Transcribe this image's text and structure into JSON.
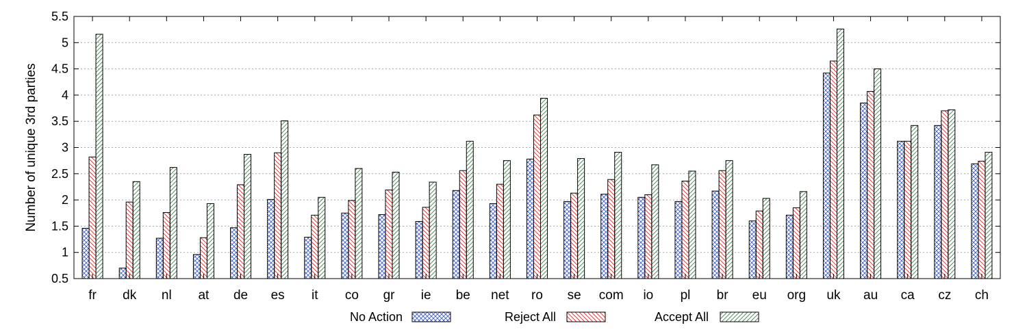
{
  "chart_data": {
    "type": "bar",
    "title": "",
    "xlabel": "",
    "ylabel": "Number of unique 3rd parties",
    "ylim": [
      0.5,
      5.5
    ],
    "yticks": [
      "0.5",
      "1",
      "1.5",
      "2",
      "2.5",
      "3",
      "3.5",
      "4",
      "4.5",
      "5",
      "5.5"
    ],
    "grid": true,
    "legend_position": "bottom",
    "categories": [
      "fr",
      "dk",
      "nl",
      "at",
      "de",
      "es",
      "it",
      "co",
      "gr",
      "ie",
      "be",
      "net",
      "ro",
      "se",
      "com",
      "io",
      "pl",
      "br",
      "eu",
      "org",
      "uk",
      "au",
      "ca",
      "cz",
      "ch"
    ],
    "series": [
      {
        "name": "No Action",
        "color": "#3b5bc8",
        "pattern": "crosshatch",
        "values": [
          1.46,
          0.7,
          1.27,
          0.96,
          1.47,
          2.01,
          1.29,
          1.75,
          1.72,
          1.59,
          2.18,
          1.93,
          2.78,
          1.97,
          2.11,
          2.05,
          1.97,
          2.17,
          1.6,
          1.71,
          4.42,
          3.85,
          3.12,
          3.42,
          2.69
        ]
      },
      {
        "name": "Reject All",
        "color": "#c83030",
        "pattern": "backslash",
        "values": [
          2.82,
          1.96,
          1.76,
          1.28,
          2.29,
          2.9,
          1.71,
          1.99,
          2.19,
          1.86,
          2.56,
          2.3,
          3.62,
          2.13,
          2.39,
          2.1,
          2.36,
          2.56,
          1.79,
          1.85,
          4.65,
          4.07,
          3.12,
          3.7,
          2.74
        ]
      },
      {
        "name": "Accept All",
        "color": "#2e8b3e",
        "pattern": "slash",
        "values": [
          5.16,
          2.35,
          2.62,
          1.93,
          2.87,
          3.51,
          2.05,
          2.6,
          2.53,
          2.34,
          3.12,
          2.75,
          3.94,
          2.79,
          2.91,
          2.67,
          2.55,
          2.75,
          2.03,
          2.16,
          5.26,
          4.5,
          3.42,
          3.72,
          2.91
        ]
      }
    ]
  }
}
